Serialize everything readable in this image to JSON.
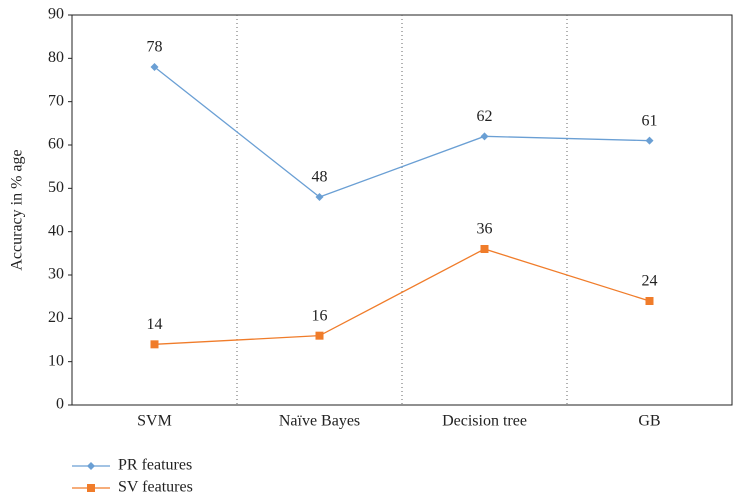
{
  "chart_data": {
    "type": "line",
    "y_axis_label": "Accuracy in % age",
    "categories": [
      "SVM",
      "Naïve Bayes",
      "Decision tree",
      "GB"
    ],
    "series": [
      {
        "name": "PR features",
        "color": "#6a9fd4",
        "marker": "diamond",
        "values": [
          78,
          48,
          62,
          61
        ]
      },
      {
        "name": "SV features",
        "color": "#f07c2a",
        "marker": "square",
        "values": [
          14,
          16,
          36,
          24
        ]
      }
    ],
    "ylim": [
      0,
      90
    ],
    "yticks": [
      0,
      10,
      20,
      30,
      40,
      50,
      60,
      70,
      80,
      90
    ],
    "data_labels": true,
    "legend": "bottom-left"
  }
}
